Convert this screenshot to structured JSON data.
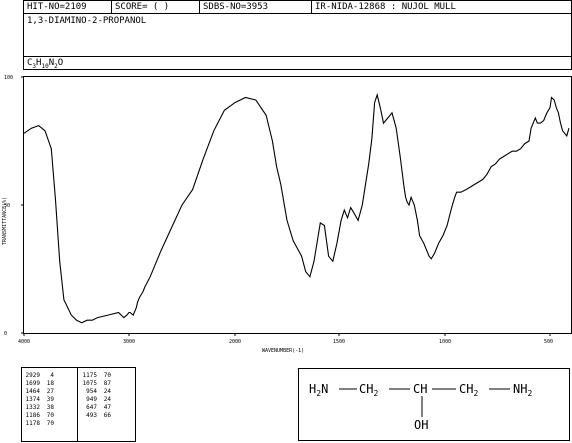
{
  "header": {
    "hit_no": "HIT-NO=2109",
    "score": "SCORE=  (   )",
    "sdbs_no": "SDBS-NO=3953",
    "ir_source": "IR-NIDA-12868 : NUJOL MULL"
  },
  "compound": {
    "name": "1,3-DIAMINO-2-PROPANOL",
    "formula": {
      "c": "C",
      "c_n": "3",
      "h": "H",
      "h_n": "10",
      "n": "N",
      "n_n": "2",
      "o": "O"
    }
  },
  "chart_data": {
    "type": "line",
    "xlabel": "WAVENUMBER(-1)",
    "ylabel": "TRANSMITTANCE(%)",
    "x_ticks": [
      {
        "value": 4000,
        "label": "4000"
      },
      {
        "value": 3000,
        "label": "3000"
      },
      {
        "value": 2000,
        "label": "2000"
      },
      {
        "value": 1500,
        "label": "1500"
      },
      {
        "value": 1000,
        "label": "1000"
      },
      {
        "value": 500,
        "label": "500"
      }
    ],
    "y_ticks": [
      {
        "value": 0,
        "label": "0"
      },
      {
        "value": 50,
        "label": "50"
      },
      {
        "value": 100,
        "label": "100"
      }
    ],
    "xlim": [
      4000,
      400
    ],
    "ylim": [
      0,
      100
    ],
    "series": [
      {
        "color": "#000000",
        "x": [
          4000,
          3930,
          3860,
          3800,
          3740,
          3700,
          3660,
          3620,
          3550,
          3500,
          3450,
          3400,
          3350,
          3300,
          3200,
          3100,
          3050,
          3020,
          3000,
          2990,
          2960,
          2930,
          2920,
          2900,
          2870,
          2850,
          2800,
          2700,
          2600,
          2500,
          2400,
          2300,
          2200,
          2100,
          2000,
          1950,
          1900,
          1850,
          1820,
          1800,
          1780,
          1750,
          1720,
          1700,
          1680,
          1660,
          1640,
          1620,
          1600,
          1590,
          1570,
          1550,
          1530,
          1510,
          1490,
          1475,
          1460,
          1445,
          1430,
          1410,
          1390,
          1375,
          1360,
          1345,
          1332,
          1320,
          1305,
          1290,
          1270,
          1250,
          1230,
          1210,
          1195,
          1186,
          1178,
          1170,
          1160,
          1145,
          1130,
          1120,
          1100,
          1085,
          1075,
          1065,
          1050,
          1030,
          1010,
          990,
          975,
          965,
          954,
          945,
          925,
          900,
          880,
          860,
          840,
          820,
          800,
          780,
          760,
          740,
          720,
          700,
          680,
          660,
          640,
          620,
          600,
          590,
          580,
          570,
          560,
          545,
          530,
          515,
          500,
          493,
          480,
          470,
          460,
          450,
          440,
          420,
          410
        ],
        "y": [
          78,
          80,
          81,
          79,
          72,
          52,
          28,
          13,
          7,
          5,
          4,
          5,
          5,
          6,
          7,
          8,
          6,
          7,
          8,
          8,
          7,
          10,
          12,
          14,
          16,
          18,
          22,
          32,
          41,
          50,
          56,
          68,
          79,
          87,
          90,
          92,
          91,
          85,
          75,
          65,
          58,
          44,
          36,
          33,
          30,
          24,
          22,
          28,
          38,
          43,
          42,
          30,
          28,
          35,
          44,
          48,
          45,
          49,
          47,
          44,
          50,
          58,
          66,
          76,
          90,
          93,
          88,
          82,
          84,
          86,
          80,
          68,
          58,
          53,
          51,
          50,
          53,
          50,
          44,
          38,
          35,
          32,
          30,
          29,
          31,
          35,
          38,
          42,
          47,
          50,
          53,
          55,
          55,
          56,
          57,
          58,
          59,
          60,
          62,
          65,
          66,
          68,
          69,
          70,
          71,
          71,
          72,
          74,
          75,
          80,
          82,
          84,
          82,
          82,
          83,
          86,
          88,
          92,
          91,
          88,
          86,
          82,
          79,
          77,
          80
        ]
      }
    ],
    "peaks": [
      {
        "wn": "2929",
        "t": "4"
      },
      {
        "wn": "1699",
        "t": "18"
      },
      {
        "wn": "1464",
        "t": "27"
      },
      {
        "wn": "1374",
        "t": "39"
      },
      {
        "wn": "1332",
        "t": "38"
      },
      {
        "wn": "1186",
        "t": "70"
      },
      {
        "wn": "1178",
        "t": "70"
      },
      {
        "wn": "1175",
        "t": "70"
      },
      {
        "wn": "1075",
        "t": "87"
      },
      {
        "wn": "954",
        "t": "24"
      },
      {
        "wn": "949",
        "t": "24"
      },
      {
        "wn": "647",
        "t": "47"
      },
      {
        "wn": "493",
        "t": "66"
      }
    ]
  },
  "structure": {
    "line1": [
      "H",
      "2",
      "N",
      "CH",
      "2",
      "CH",
      "CH",
      "2",
      "NH",
      "2"
    ],
    "oh": "OH"
  }
}
